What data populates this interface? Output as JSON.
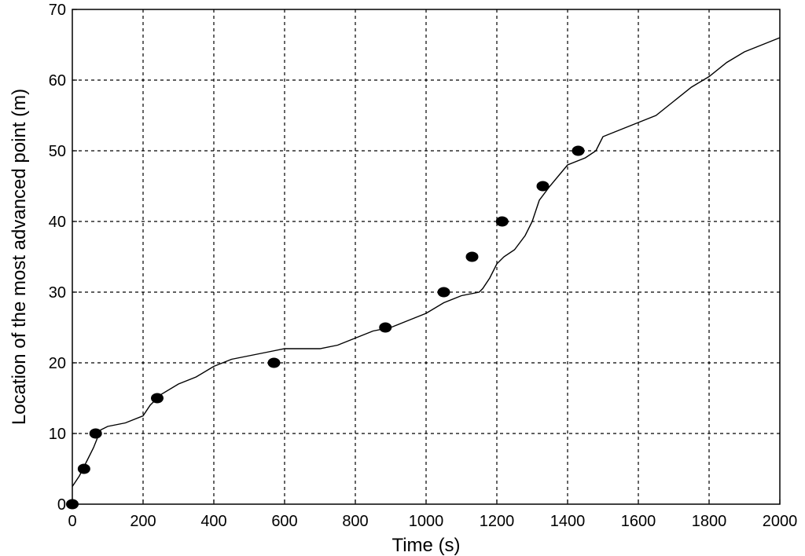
{
  "chart_data": {
    "type": "scatter",
    "title": "",
    "xlabel": "Time (s)",
    "ylabel": "Location of the most advanced point (m)",
    "xlim": [
      0,
      2000
    ],
    "ylim": [
      0,
      70
    ],
    "x_ticks": [
      0,
      200,
      400,
      600,
      800,
      1000,
      1200,
      1400,
      1600,
      1800,
      2000
    ],
    "y_ticks": [
      0,
      10,
      20,
      30,
      40,
      50,
      60,
      70
    ],
    "grid": true,
    "series": [
      {
        "type": "line",
        "x": [
          0,
          20,
          40,
          60,
          80,
          100,
          150,
          200,
          220,
          250,
          300,
          350,
          400,
          450,
          500,
          550,
          600,
          650,
          700,
          750,
          800,
          850,
          900,
          950,
          1000,
          1050,
          1100,
          1150,
          1160,
          1180,
          1200,
          1220,
          1250,
          1280,
          1300,
          1320,
          1350,
          1400,
          1450,
          1480,
          1500,
          1550,
          1600,
          1650,
          1700,
          1750,
          1800,
          1850,
          1900,
          1950,
          2000
        ],
        "y": [
          2.5,
          4,
          6,
          8,
          10.5,
          11,
          11.5,
          12.5,
          14,
          15.5,
          17,
          18,
          19.5,
          20.5,
          21,
          21.5,
          22,
          22,
          22,
          22.5,
          23.5,
          24.5,
          25,
          26,
          27,
          28.5,
          29.5,
          30,
          30.5,
          32,
          34,
          35,
          36,
          38,
          40,
          43,
          45,
          48,
          49,
          50,
          52,
          53,
          54,
          55,
          57,
          59,
          60.5,
          62.5,
          64,
          65,
          66
        ]
      },
      {
        "type": "scatter",
        "x": [
          0,
          33,
          66,
          240,
          570,
          885,
          1050,
          1130,
          1215,
          1330,
          1430
        ],
        "y": [
          0,
          5,
          10,
          15,
          20,
          25,
          30,
          35,
          40,
          45,
          50
        ]
      }
    ]
  }
}
